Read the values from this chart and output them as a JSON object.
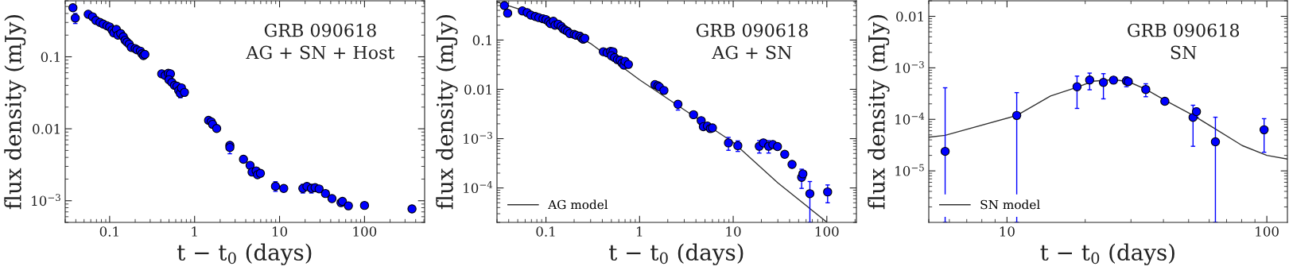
{
  "chart_data": [
    {
      "type": "scatter",
      "xlabel": "t − t$_{0}$ (days)",
      "ylabel": "flux density (mJy)",
      "annotations": [
        "GRB 090618",
        "AG + SN + Host"
      ],
      "log": "xy",
      "marker": "circle",
      "grid": false,
      "legend": false,
      "xlim": [
        0.03,
        510
      ],
      "xticks": [
        0.1,
        1,
        10,
        100
      ],
      "ylim": [
        0.0005,
        0.6
      ],
      "yticks": [
        {
          "value": 0.1,
          "label": "0.1"
        },
        {
          "value": 0.01,
          "label": "0.01"
        },
        {
          "value": 0.001,
          "label": "10$^{−3}$"
        }
      ],
      "series": [
        {
          "type": "scatter",
          "color": "#0000ff",
          "x": [
            0.037,
            0.0394,
            0.056,
            0.063,
            0.069,
            0.077,
            0.084,
            0.093,
            0.1,
            0.107,
            0.112,
            0.12,
            0.125,
            0.135,
            0.145,
            0.152,
            0.16,
            0.17,
            0.18,
            0.2,
            0.21,
            0.23,
            0.24,
            0.25,
            0.26,
            0.41,
            0.45,
            0.49,
            0.52,
            0.5,
            0.54,
            0.58,
            0.62,
            0.65,
            0.68,
            0.7,
            0.76,
            1.46,
            1.57,
            1.63,
            1.82,
            2.6,
            2.6,
            3.76,
            4.5,
            4.75,
            5.3,
            5.5,
            5.95,
            8.95,
            11.2,
            18.8,
            21,
            23.7,
            26.2,
            29.2,
            34.7,
            41.4,
            52.9,
            55,
            64.6,
            100,
            362
          ],
          "values": [
            0.48,
            0.345,
            0.39,
            0.36,
            0.32,
            0.3,
            0.285,
            0.27,
            0.26,
            0.235,
            0.215,
            0.24,
            0.2,
            0.21,
            0.19,
            0.17,
            0.16,
            0.15,
            0.135,
            0.13,
            0.125,
            0.12,
            0.11,
            0.104,
            0.108,
            0.058,
            0.055,
            0.059,
            0.058,
            0.048,
            0.044,
            0.04,
            0.039,
            0.034,
            0.031,
            0.037,
            0.032,
            0.0131,
            0.0125,
            0.0115,
            0.0101,
            0.00588,
            0.0055,
            0.00377,
            0.0031,
            0.0025,
            0.0026,
            0.0023,
            0.0024,
            0.00159,
            0.00148,
            0.00148,
            0.00158,
            0.00148,
            0.00152,
            0.00146,
            0.00126,
            0.00107,
            0.00094,
            0.00098,
            0.00085,
            0.00086,
            0.00077
          ],
          "errors": [
            null,
            [
              0.29,
              0.4
            ],
            null,
            null,
            null,
            null,
            null,
            null,
            null,
            null,
            null,
            null,
            null,
            null,
            null,
            null,
            null,
            null,
            null,
            null,
            null,
            null,
            null,
            null,
            null,
            null,
            null,
            null,
            null,
            null,
            null,
            null,
            null,
            null,
            [
              0.027,
              0.035
            ],
            null,
            null,
            null,
            null,
            null,
            null,
            null,
            [
              0.0045,
              0.0062
            ],
            null,
            null,
            null,
            null,
            null,
            null,
            [
              0.00135,
              0.00184
            ],
            [
              0.00134,
              0.00163
            ],
            [
              0.00128,
              0.00169
            ],
            null,
            [
              0.00128,
              0.00169
            ],
            null,
            null,
            null,
            null,
            null,
            null,
            null,
            null,
            null
          ]
        }
      ]
    },
    {
      "type": "scatter",
      "xlabel": "t − t$_{0}$ (days)",
      "ylabel": "flux density (mJy)",
      "annotations": [
        "GRB 090618",
        "AG + SN"
      ],
      "log": "xy",
      "marker": "circle",
      "grid": false,
      "legend": "bottom left",
      "xlim": [
        0.03,
        207
      ],
      "xticks": [
        0.1,
        1,
        10,
        100
      ],
      "ylim": [
        2e-05,
        0.625
      ],
      "yticks": [
        {
          "value": 0.1,
          "label": "0.1"
        },
        {
          "value": 0.01,
          "label": "0.01"
        },
        {
          "value": 0.001,
          "label": "10$^{−3}$"
        },
        {
          "value": 0.0001,
          "label": "10$^{−4}$"
        }
      ],
      "series": [
        {
          "type": "scatter",
          "color": "#0000ff",
          "x": [
            0.036,
            0.039,
            0.056,
            0.063,
            0.069,
            0.077,
            0.084,
            0.093,
            0.1,
            0.107,
            0.112,
            0.12,
            0.125,
            0.135,
            0.145,
            0.152,
            0.16,
            0.17,
            0.18,
            0.2,
            0.21,
            0.23,
            0.24,
            0.25,
            0.26,
            0.41,
            0.45,
            0.49,
            0.52,
            0.5,
            0.54,
            0.58,
            0.62,
            0.65,
            0.68,
            0.7,
            0.76,
            1.46,
            1.57,
            1.63,
            1.82,
            2.57,
            3.77,
            4.55,
            4.8,
            5.3,
            5.7,
            6.0,
            8.9,
            11.2,
            19,
            21,
            23.9,
            26.5,
            29.7,
            35.5,
            42.5,
            53.8,
            55.5,
            65.9,
            102
          ],
          "values": [
            0.5,
            0.35,
            0.39,
            0.36,
            0.32,
            0.3,
            0.285,
            0.27,
            0.26,
            0.235,
            0.215,
            0.24,
            0.2,
            0.21,
            0.19,
            0.17,
            0.16,
            0.15,
            0.135,
            0.13,
            0.125,
            0.12,
            0.11,
            0.104,
            0.108,
            0.058,
            0.055,
            0.059,
            0.058,
            0.048,
            0.044,
            0.04,
            0.039,
            0.034,
            0.031,
            0.037,
            0.032,
            0.0125,
            0.0118,
            0.0112,
            0.0095,
            0.00497,
            0.00306,
            0.00232,
            0.00175,
            0.0018,
            0.0016,
            0.00165,
            0.00082,
            0.00072,
            0.0007,
            0.00082,
            0.0007,
            0.00076,
            0.00069,
            0.00048,
            0.0003,
            0.000164,
            0.000193,
            7.65e-05,
            8.3e-05
          ],
          "errors": [
            null,
            [
              0.31,
              0.4
            ],
            null,
            null,
            null,
            null,
            null,
            null,
            null,
            null,
            null,
            null,
            null,
            null,
            null,
            null,
            null,
            null,
            null,
            null,
            null,
            null,
            null,
            null,
            null,
            null,
            null,
            null,
            null,
            null,
            null,
            null,
            null,
            null,
            [
              0.027,
              0.035
            ],
            null,
            null,
            null,
            null,
            null,
            null,
            [
              0.0038,
              0.0058
            ],
            null,
            null,
            null,
            null,
            [
              0.0014,
              0.0018
            ],
            null,
            [
              0.00058,
              0.00106
            ],
            [
              0.00055,
              0.0009
            ],
            [
              0.00051,
              0.00091
            ],
            [
              0.0007,
              0.00096
            ],
            [
              0.00051,
              0.00091
            ],
            null,
            null,
            [
              0.00042,
              0.00055
            ],
            null,
            [
              9.8e-05,
              0.00024
            ],
            null,
            [
              2e-05,
              0.000135
            ],
            [
              5e-05,
              0.000115
            ]
          ]
        },
        {
          "type": "line",
          "marker": "none",
          "name": "AG model",
          "color": "#333333",
          "x": [
            0.03,
            0.1,
            0.3,
            1,
            3,
            10,
            30,
            98.6
          ],
          "values": [
            0.59,
            0.284,
            0.085,
            0.0156,
            0.00385,
            0.00084,
            0.000127,
            2.07e-05
          ]
        }
      ]
    },
    {
      "type": "scatter",
      "xlabel": "t − t$_{0}$ (days)",
      "ylabel": "flux density (mJy)",
      "annotations": [
        "GRB 090618",
        "SN"
      ],
      "log": "xy",
      "marker": "circle",
      "grid": false,
      "legend": "bottom left",
      "xlim": [
        5,
        120
      ],
      "xticks": [
        10,
        100
      ],
      "ylim": [
        1e-06,
        0.02
      ],
      "yticks": [
        {
          "value": 0.01,
          "label": "0.01"
        },
        {
          "value": 0.001,
          "label": "10$^{−3}$"
        },
        {
          "value": 0.0001,
          "label": "10$^{−4}$"
        },
        {
          "value": 1e-05,
          "label": "10$^{−5}$"
        }
      ],
      "series": [
        {
          "type": "scatter",
          "color": "#0000ff",
          "x": [
            5.78,
            10.9,
            18.6,
            20.8,
            23.5,
            25.7,
            28.8,
            29.3,
            34.2,
            40.5,
            52,
            53.6,
            63.4,
            97.6
          ],
          "values": [
            2.39e-05,
            0.000119,
            0.00043,
            0.00058,
            0.00052,
            0.000577,
            0.000556,
            0.00054,
            0.00038,
            0.000224,
            0.000109,
            0.000141,
            3.66e-05,
            6.28e-05
          ],
          "errors": [
            [
              1e-06,
              0.00041
            ],
            [
              1e-06,
              0.00033
            ],
            [
              0.000163,
              0.00069
            ],
            [
              0.000375,
              0.00079
            ],
            [
              0.00025,
              0.00077
            ],
            [
              0.00052,
              0.00063
            ],
            [
              0.00043,
              0.00067
            ],
            null,
            [
              0.000275,
              0.00049
            ],
            null,
            [
              3e-05,
              0.000188
            ],
            [
              0.00011,
              0.000165
            ],
            [
              1e-06,
              0.00011
            ],
            [
              2.3e-05,
              0.000103
            ]
          ]
        },
        {
          "type": "line",
          "marker": "none",
          "name": "SN model",
          "color": "#333333",
          "x": [
            5,
            5.78,
            10.9,
            14.7,
            18.6,
            21.4,
            25.7,
            29.3,
            34.2,
            40.5,
            52,
            63.4,
            80.4,
            100,
            120
          ],
          "values": [
            4.5e-05,
            4.9e-05,
            0.000119,
            0.000283,
            0.00042,
            0.00055,
            0.00059,
            0.00054,
            0.000385,
            0.000236,
            0.00012,
            6.5e-05,
            3.1e-05,
            2e-05,
            1.7e-05
          ]
        }
      ]
    }
  ]
}
